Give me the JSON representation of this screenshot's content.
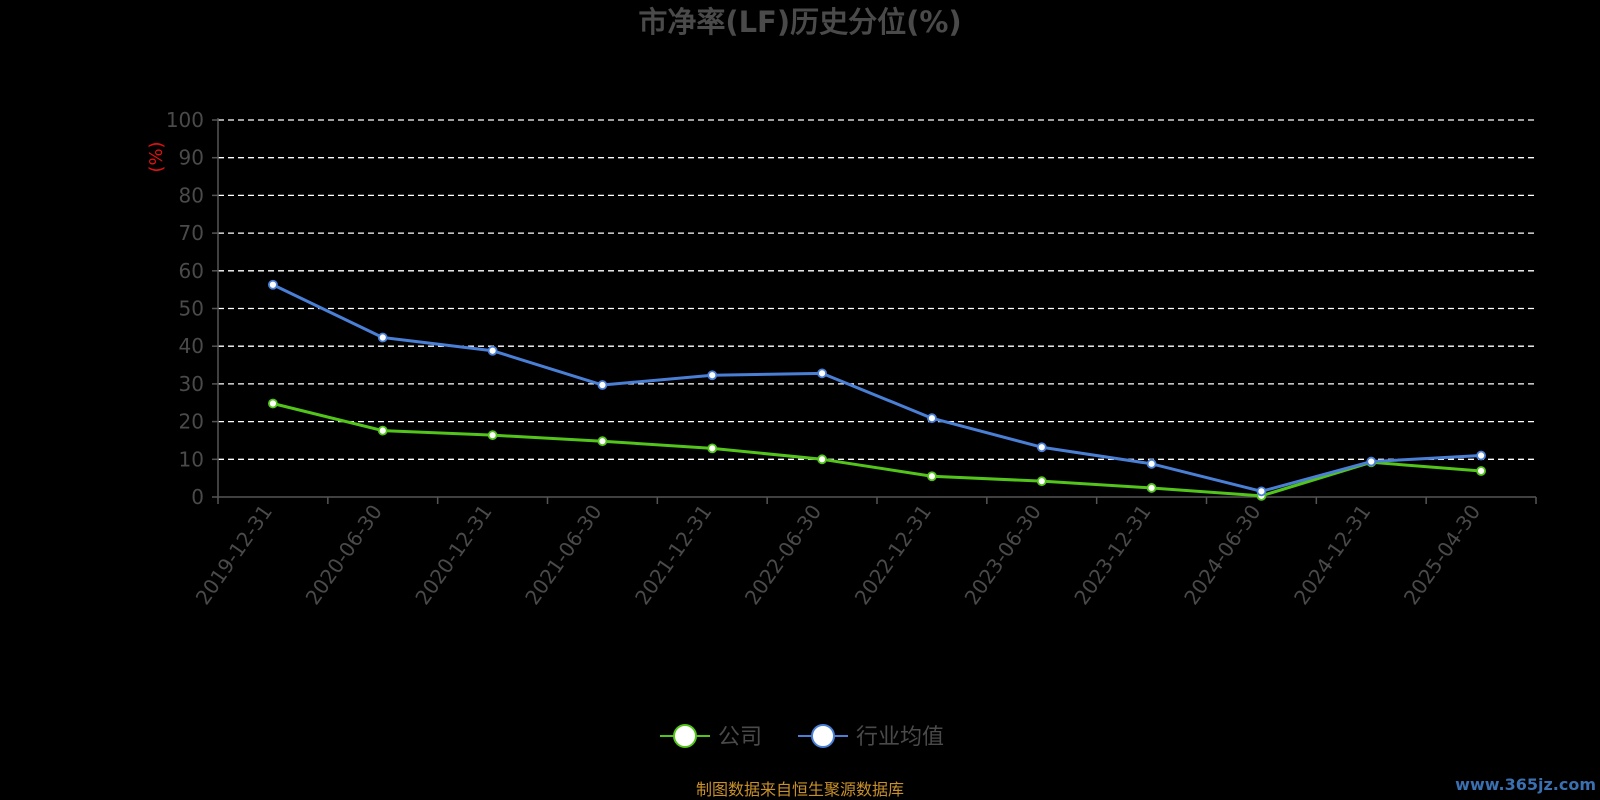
{
  "chart_data": {
    "type": "line",
    "title": "市净率(LF)历史分位(%)",
    "ylabel": "(%)",
    "ylim": [
      0,
      100
    ],
    "yticks": [
      0,
      10,
      20,
      30,
      40,
      50,
      60,
      70,
      80,
      90,
      100
    ],
    "grid": true,
    "legend_position": "bottom-center",
    "categories": [
      "2019-12-31",
      "2020-06-30",
      "2020-12-31",
      "2021-06-30",
      "2021-12-31",
      "2022-06-30",
      "2022-12-31",
      "2023-06-30",
      "2023-12-31",
      "2024-06-30",
      "2024-12-31",
      "2025-04-30"
    ],
    "series": [
      {
        "name": "公司",
        "color": "#52c41a",
        "values": [
          24.8,
          17.6,
          16.4,
          14.8,
          12.9,
          10.0,
          5.5,
          4.2,
          2.4,
          0.3,
          9.2,
          6.9
        ]
      },
      {
        "name": "行业均值",
        "color": "#4a7fd6",
        "values": [
          56.3,
          42.3,
          38.8,
          29.7,
          32.3,
          32.8,
          20.9,
          13.2,
          8.8,
          1.5,
          9.4,
          11.0
        ]
      }
    ]
  },
  "source_text": "制图数据来自恒生聚源数据库",
  "watermark": "www.365jz.com"
}
